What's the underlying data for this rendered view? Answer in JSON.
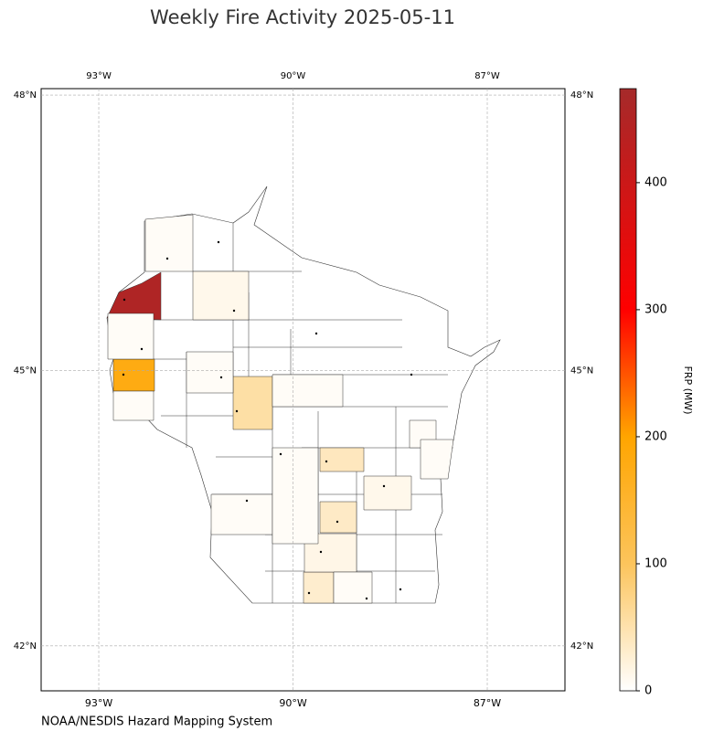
{
  "chart_data": {
    "type": "choropleth",
    "title": "Weekly Fire Activity 2025-05-11",
    "source": "NOAA/NESDIS Hazard Mapping System",
    "xlim": [
      -93.89,
      -85.8
    ],
    "ylim": [
      41.51,
      48.07
    ],
    "xticks": [
      {
        "value": -93,
        "label": "93°W"
      },
      {
        "value": -90,
        "label": "90°W"
      },
      {
        "value": -87,
        "label": "87°W"
      }
    ],
    "yticks": [
      {
        "value": 42,
        "label": "42°N"
      },
      {
        "value": 45,
        "label": "45°N"
      },
      {
        "value": 48,
        "label": "48°N"
      }
    ],
    "grid": true,
    "colorbar": {
      "label": "FRP (MW)",
      "lim": [
        0,
        474
      ],
      "ticks": [
        0,
        100,
        200,
        300,
        400
      ],
      "colormap": [
        {
          "value": 0,
          "color": "#ffffff"
        },
        {
          "value": 100,
          "color": "#fcc45c"
        },
        {
          "value": 200,
          "color": "#ffa500"
        },
        {
          "value": 300,
          "color": "#ff0000"
        },
        {
          "value": 474,
          "color": "#a52a2a"
        }
      ]
    },
    "values": [
      455,
      180,
      55,
      40,
      35,
      30,
      12,
      15,
      12,
      5,
      5,
      5,
      5,
      5,
      5,
      5,
      5,
      5,
      5
    ]
  }
}
